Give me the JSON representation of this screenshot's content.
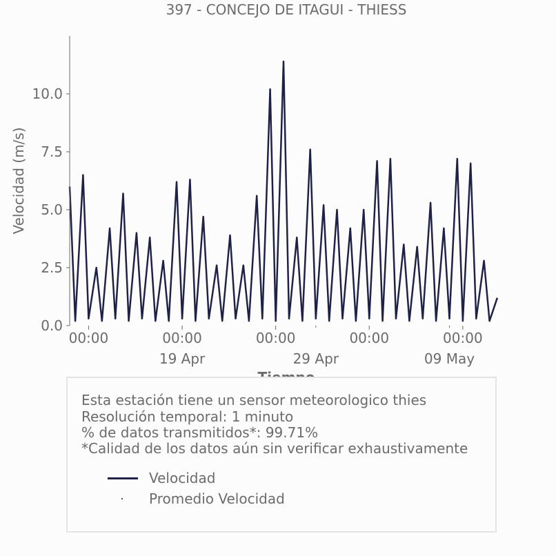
{
  "chart_data": {
    "type": "line",
    "title": "397 - CONCEJO DE ITAGUI - THIESS",
    "xlabel": "Tiempo",
    "ylabel": "Velocidad (m/s)",
    "ylim": [
      0,
      12.5
    ],
    "yticks": [
      0.0,
      2.5,
      5.0,
      7.5,
      10.0
    ],
    "ytick_labels": [
      "0.0",
      "2.5",
      "5.0",
      "7.5",
      "10.0"
    ],
    "xlim": [
      "2024-04-10T14:00",
      "2024-05-13T00:00"
    ],
    "xticks_time": [
      {
        "x": "2024-04-12T00:00",
        "label": "00:00"
      },
      {
        "x": "2024-04-19T00:00",
        "label": "00:00"
      },
      {
        "x": "2024-04-26T00:00",
        "label": "00:00"
      },
      {
        "x": "2024-05-03T00:00",
        "label": "00:00"
      },
      {
        "x": "2024-05-10T00:00",
        "label": "00:00"
      }
    ],
    "xticks_date": [
      {
        "x": "2024-04-19T00:00",
        "label": "19 Apr"
      },
      {
        "x": "2024-04-29T00:00",
        "label": "29 Apr"
      },
      {
        "x": "2024-05-09T00:00",
        "label": "09 May"
      }
    ],
    "series": [
      {
        "name": "Velocidad",
        "color": "#1f2147",
        "x": [
          "2024-04-10T14:00",
          "2024-04-11T00:00",
          "2024-04-11T14:00",
          "2024-04-12T00:00",
          "2024-04-12T14:00",
          "2024-04-13T00:00",
          "2024-04-13T14:00",
          "2024-04-14T00:00",
          "2024-04-14T14:00",
          "2024-04-15T00:00",
          "2024-04-15T14:00",
          "2024-04-16T00:00",
          "2024-04-16T14:00",
          "2024-04-17T00:00",
          "2024-04-17T14:00",
          "2024-04-18T00:00",
          "2024-04-18T14:00",
          "2024-04-19T00:00",
          "2024-04-19T14:00",
          "2024-04-20T00:00",
          "2024-04-20T14:00",
          "2024-04-21T00:00",
          "2024-04-21T14:00",
          "2024-04-22T00:00",
          "2024-04-22T14:00",
          "2024-04-23T00:00",
          "2024-04-23T14:00",
          "2024-04-24T00:00",
          "2024-04-24T14:00",
          "2024-04-25T00:00",
          "2024-04-25T14:00",
          "2024-04-26T00:00",
          "2024-04-26T14:00",
          "2024-04-27T00:00",
          "2024-04-27T14:00",
          "2024-04-28T00:00",
          "2024-04-28T14:00",
          "2024-04-29T00:00",
          "2024-04-29T14:00",
          "2024-04-30T00:00",
          "2024-04-30T14:00",
          "2024-05-01T00:00",
          "2024-05-01T14:00",
          "2024-05-02T00:00",
          "2024-05-02T14:00",
          "2024-05-03T00:00",
          "2024-05-03T14:00",
          "2024-05-04T00:00",
          "2024-05-04T14:00",
          "2024-05-05T00:00",
          "2024-05-05T14:00",
          "2024-05-06T00:00",
          "2024-05-06T14:00",
          "2024-05-07T00:00",
          "2024-05-07T14:00",
          "2024-05-08T00:00",
          "2024-05-08T14:00",
          "2024-05-09T00:00",
          "2024-05-09T14:00",
          "2024-05-10T00:00",
          "2024-05-10T14:00",
          "2024-05-11T00:00",
          "2024-05-11T14:00",
          "2024-05-12T00:00",
          "2024-05-12T14:00"
        ],
        "y": [
          6.0,
          0.2,
          6.5,
          0.3,
          2.5,
          0.2,
          4.2,
          0.3,
          5.7,
          0.2,
          4.0,
          0.3,
          3.8,
          0.2,
          2.8,
          0.2,
          6.2,
          0.3,
          6.3,
          0.2,
          4.7,
          0.3,
          2.6,
          0.2,
          3.9,
          0.3,
          2.6,
          0.2,
          5.6,
          0.3,
          10.2,
          0.2,
          11.4,
          0.3,
          3.8,
          0.2,
          7.6,
          0.3,
          5.2,
          0.2,
          5.0,
          0.3,
          4.2,
          0.2,
          5.0,
          0.3,
          7.1,
          0.2,
          7.2,
          0.3,
          3.5,
          0.2,
          3.4,
          0.3,
          5.3,
          0.2,
          4.2,
          0.3,
          7.2,
          0.2,
          7.0,
          0.3,
          2.8,
          0.2,
          1.2
        ]
      },
      {
        "name": "Promedio Velocidad",
        "color": "#1f2147"
      }
    ]
  },
  "info": {
    "line1": "Esta estación tiene un sensor meteorologico thies",
    "line2": "Resolución temporal: 1 minuto",
    "line3": "% de datos transmitidos*: 99.71%",
    "line4": "*Calidad de los datos aún sin verificar exhaustivamente"
  },
  "legend": {
    "item1": "Velocidad",
    "item2": "Promedio Velocidad"
  }
}
